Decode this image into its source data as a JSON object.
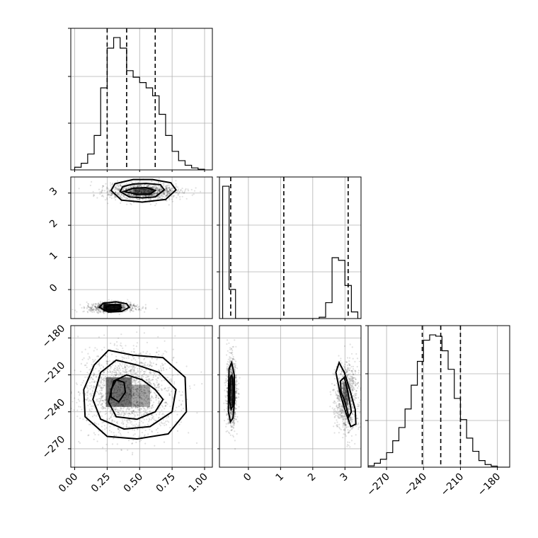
{
  "chart_data": {
    "type": "corner",
    "n_params": 3,
    "grid": true,
    "param_ranges": [
      [
        -0.03,
        1.06
      ],
      [
        -0.9,
        3.5
      ],
      [
        -285,
        -170
      ]
    ],
    "diag_tick_labels": [
      [],
      [],
      [
        "−270",
        "−240",
        "−210",
        "−180"
      ]
    ],
    "diag_tick_values": [
      [],
      [],
      [
        -270,
        -240,
        -210,
        -180
      ]
    ],
    "x_tick_labels": [
      [
        "0.00",
        "0.25",
        "0.50",
        "0.75",
        "1.00"
      ],
      [
        "0",
        "1",
        "2",
        "3"
      ],
      [
        "−270",
        "−240",
        "−210",
        "−180"
      ]
    ],
    "x_tick_values": [
      [
        0,
        0.25,
        0.5,
        0.75,
        1.0
      ],
      [
        0,
        1,
        2,
        3
      ],
      [
        -270,
        -240,
        -210,
        -180
      ]
    ],
    "y_tick_labels": [
      [],
      [
        "3",
        "2",
        "1",
        "0"
      ],
      [
        "−180",
        "−210",
        "−240",
        "−270"
      ]
    ],
    "y_tick_values": [
      [],
      [
        3,
        2,
        1,
        0
      ],
      [
        -180,
        -210,
        -240,
        -270
      ]
    ],
    "quantiles": [
      [
        0.25,
        0.4,
        0.62
      ],
      [
        -0.55,
        1.1,
        3.1
      ],
      [
        -241,
        -226,
        -210
      ]
    ],
    "histograms": [
      {
        "bins": [
          0.0,
          0.05,
          0.1,
          0.15,
          0.2,
          0.25,
          0.3,
          0.35,
          0.4,
          0.45,
          0.5,
          0.55,
          0.6,
          0.65,
          0.7,
          0.75,
          0.8,
          0.85,
          0.9,
          0.95,
          1.0
        ],
        "counts": [
          0.02,
          0.05,
          0.12,
          0.26,
          0.62,
          0.92,
          1.0,
          0.92,
          0.75,
          0.7,
          0.66,
          0.62,
          0.56,
          0.42,
          0.26,
          0.14,
          0.07,
          0.035,
          0.015,
          0.005
        ]
      },
      {
        "bins": [
          -0.8,
          -0.6,
          -0.4,
          -0.2,
          0.0,
          0.2,
          0.4,
          0.6,
          0.8,
          1.0,
          1.2,
          1.4,
          1.6,
          1.8,
          2.0,
          2.2,
          2.4,
          2.6,
          2.8,
          3.0,
          3.2,
          3.4,
          3.6
        ],
        "counts": [
          1.0,
          0.22,
          0,
          0,
          0,
          0,
          0,
          0,
          0,
          0,
          0,
          0,
          0,
          0,
          0,
          0.01,
          0.12,
          0.46,
          0.44,
          0.25,
          0.05,
          0.0
        ]
      },
      {
        "bins": [
          -295,
          -290,
          -285,
          -280,
          -275,
          -270,
          -265,
          -260,
          -255,
          -250,
          -245,
          -240,
          -235,
          -230,
          -225,
          -220,
          -215,
          -210,
          -205,
          -200,
          -195,
          -190,
          -185,
          -180,
          -175,
          -170
        ],
        "counts": [
          0,
          0.005,
          0.01,
          0.03,
          0.06,
          0.11,
          0.2,
          0.3,
          0.44,
          0.62,
          0.8,
          0.96,
          1.0,
          0.99,
          0.88,
          0.74,
          0.52,
          0.36,
          0.22,
          0.12,
          0.05,
          0.02,
          0.008,
          0,
          0
        ]
      }
    ],
    "pair_panels": [
      {
        "x_param": 0,
        "y_param": 1,
        "clusters": [
          {
            "center": [
              0.52,
              3.05
            ],
            "sd": [
              0.14,
              0.13
            ],
            "n": 1200
          },
          {
            "center": [
              0.28,
              -0.55
            ],
            "sd": [
              0.1,
              0.07
            ],
            "n": 700
          }
        ],
        "contours": [
          [
            [
              0.35,
              3.05
            ],
            [
              0.37,
              3.2
            ],
            [
              0.45,
              3.28
            ],
            [
              0.55,
              3.3
            ],
            [
              0.66,
              3.26
            ],
            [
              0.69,
              3.1
            ],
            [
              0.62,
              2.88
            ],
            [
              0.52,
              2.85
            ],
            [
              0.42,
              2.88
            ],
            [
              0.35,
              3.05
            ]
          ],
          [
            [
              0.28,
              3.08
            ],
            [
              0.31,
              3.29
            ],
            [
              0.45,
              3.42
            ],
            [
              0.6,
              3.42
            ],
            [
              0.74,
              3.32
            ],
            [
              0.78,
              3.1
            ],
            [
              0.7,
              2.8
            ],
            [
              0.52,
              2.72
            ],
            [
              0.36,
              2.78
            ],
            [
              0.28,
              3.08
            ]
          ],
          [
            [
              0.38,
              3.05
            ],
            [
              0.45,
              3.15
            ],
            [
              0.55,
              3.17
            ],
            [
              0.62,
              3.08
            ],
            [
              0.58,
              2.97
            ],
            [
              0.48,
              2.96
            ],
            [
              0.38,
              3.05
            ]
          ],
          [
            [
              0.19,
              -0.55
            ],
            [
              0.22,
              -0.42
            ],
            [
              0.32,
              -0.38
            ],
            [
              0.4,
              -0.44
            ],
            [
              0.42,
              -0.55
            ],
            [
              0.36,
              -0.68
            ],
            [
              0.26,
              -0.7
            ],
            [
              0.19,
              -0.55
            ]
          ],
          [
            [
              0.24,
              -0.56
            ],
            [
              0.28,
              -0.48
            ],
            [
              0.34,
              -0.48
            ],
            [
              0.36,
              -0.56
            ],
            [
              0.32,
              -0.64
            ],
            [
              0.25,
              -0.63
            ],
            [
              0.24,
              -0.56
            ]
          ]
        ],
        "shade": [
          {
            "xr": [
              0.45,
              0.6
            ],
            "yr": [
              2.92,
              3.18
            ],
            "a": 0.55
          },
          {
            "xr": [
              0.22,
              0.36
            ],
            "yr": [
              -0.68,
              -0.44
            ],
            "a": 0.9
          }
        ]
      },
      {
        "x_param": 0,
        "y_param": 2,
        "clusters": [
          {
            "center": [
              0.4,
              -224
            ],
            "sd": [
              0.18,
              17
            ],
            "n": 1800
          }
        ],
        "contours": [
          [
            [
              0.3,
              -215
            ],
            [
              0.4,
              -210
            ],
            [
              0.52,
              -214
            ],
            [
              0.62,
              -222
            ],
            [
              0.68,
              -230
            ],
            [
              0.62,
              -240
            ],
            [
              0.48,
              -246
            ],
            [
              0.32,
              -244
            ],
            [
              0.26,
              -232
            ],
            [
              0.3,
              -215
            ]
          ],
          [
            [
              0.2,
              -208
            ],
            [
              0.32,
              -198
            ],
            [
              0.48,
              -202
            ],
            [
              0.65,
              -208
            ],
            [
              0.78,
              -222
            ],
            [
              0.75,
              -240
            ],
            [
              0.58,
              -252
            ],
            [
              0.38,
              -254
            ],
            [
              0.2,
              -246
            ],
            [
              0.14,
              -230
            ],
            [
              0.2,
              -208
            ]
          ],
          [
            [
              0.15,
              -202
            ],
            [
              0.26,
              -190
            ],
            [
              0.45,
              -194
            ],
            [
              0.68,
              -196
            ],
            [
              0.85,
              -212
            ],
            [
              0.86,
              -240
            ],
            [
              0.72,
              -258
            ],
            [
              0.48,
              -262
            ],
            [
              0.25,
              -260
            ],
            [
              0.08,
              -244
            ],
            [
              0.07,
              -222
            ],
            [
              0.15,
              -202
            ]
          ],
          [
            [
              0.28,
              -222
            ],
            [
              0.32,
              -214
            ],
            [
              0.38,
              -216
            ],
            [
              0.39,
              -224
            ],
            [
              0.34,
              -232
            ],
            [
              0.28,
              -228
            ],
            [
              0.28,
              -222
            ]
          ]
        ],
        "shade": [
          {
            "xr": [
              0.24,
              0.44
            ],
            "yr": [
              -236,
              -212
            ],
            "a": 0.55
          },
          {
            "xr": [
              0.44,
              0.58
            ],
            "yr": [
              -236,
              -218
            ],
            "a": 0.35
          }
        ]
      },
      {
        "x_param": 1,
        "y_param": 2,
        "clusters": [
          {
            "center": [
              -0.52,
              -225
            ],
            "sd": [
              0.08,
              15
            ],
            "n": 900
          },
          {
            "center": [
              3.05,
              -228
            ],
            "sd": [
              0.18,
              14
            ],
            "n": 900
          }
        ],
        "contours": [
          [
            [
              -0.62,
              -225
            ],
            [
              -0.6,
              -205
            ],
            [
              -0.52,
              -200
            ],
            [
              -0.44,
              -210
            ],
            [
              -0.43,
              -230
            ],
            [
              -0.48,
              -245
            ],
            [
              -0.56,
              -248
            ],
            [
              -0.62,
              -240
            ],
            [
              -0.62,
              -225
            ]
          ],
          [
            [
              -0.58,
              -225
            ],
            [
              -0.56,
              -212
            ],
            [
              -0.51,
              -210
            ],
            [
              -0.47,
              -220
            ],
            [
              -0.48,
              -235
            ],
            [
              -0.54,
              -238
            ],
            [
              -0.58,
              -232
            ],
            [
              -0.58,
              -225
            ]
          ],
          [
            [
              2.72,
              -208
            ],
            [
              2.82,
              -200
            ],
            [
              2.98,
              -208
            ],
            [
              3.15,
              -222
            ],
            [
              3.32,
              -238
            ],
            [
              3.34,
              -250
            ],
            [
              3.18,
              -252
            ],
            [
              3.02,
              -240
            ],
            [
              2.86,
              -226
            ],
            [
              2.72,
              -208
            ]
          ],
          [
            [
              2.86,
              -215
            ],
            [
              2.98,
              -212
            ],
            [
              3.1,
              -225
            ],
            [
              3.2,
              -240
            ],
            [
              3.12,
              -244
            ],
            [
              3.0,
              -232
            ],
            [
              2.88,
              -224
            ],
            [
              2.86,
              -215
            ]
          ]
        ],
        "shade": [
          {
            "xr": [
              -0.58,
              -0.46
            ],
            "yr": [
              -235,
              -212
            ],
            "a": 0.6
          },
          {
            "xr": [
              2.94,
              3.1
            ],
            "yr": [
              -234,
              -216
            ],
            "a": 0.45
          }
        ]
      }
    ]
  }
}
